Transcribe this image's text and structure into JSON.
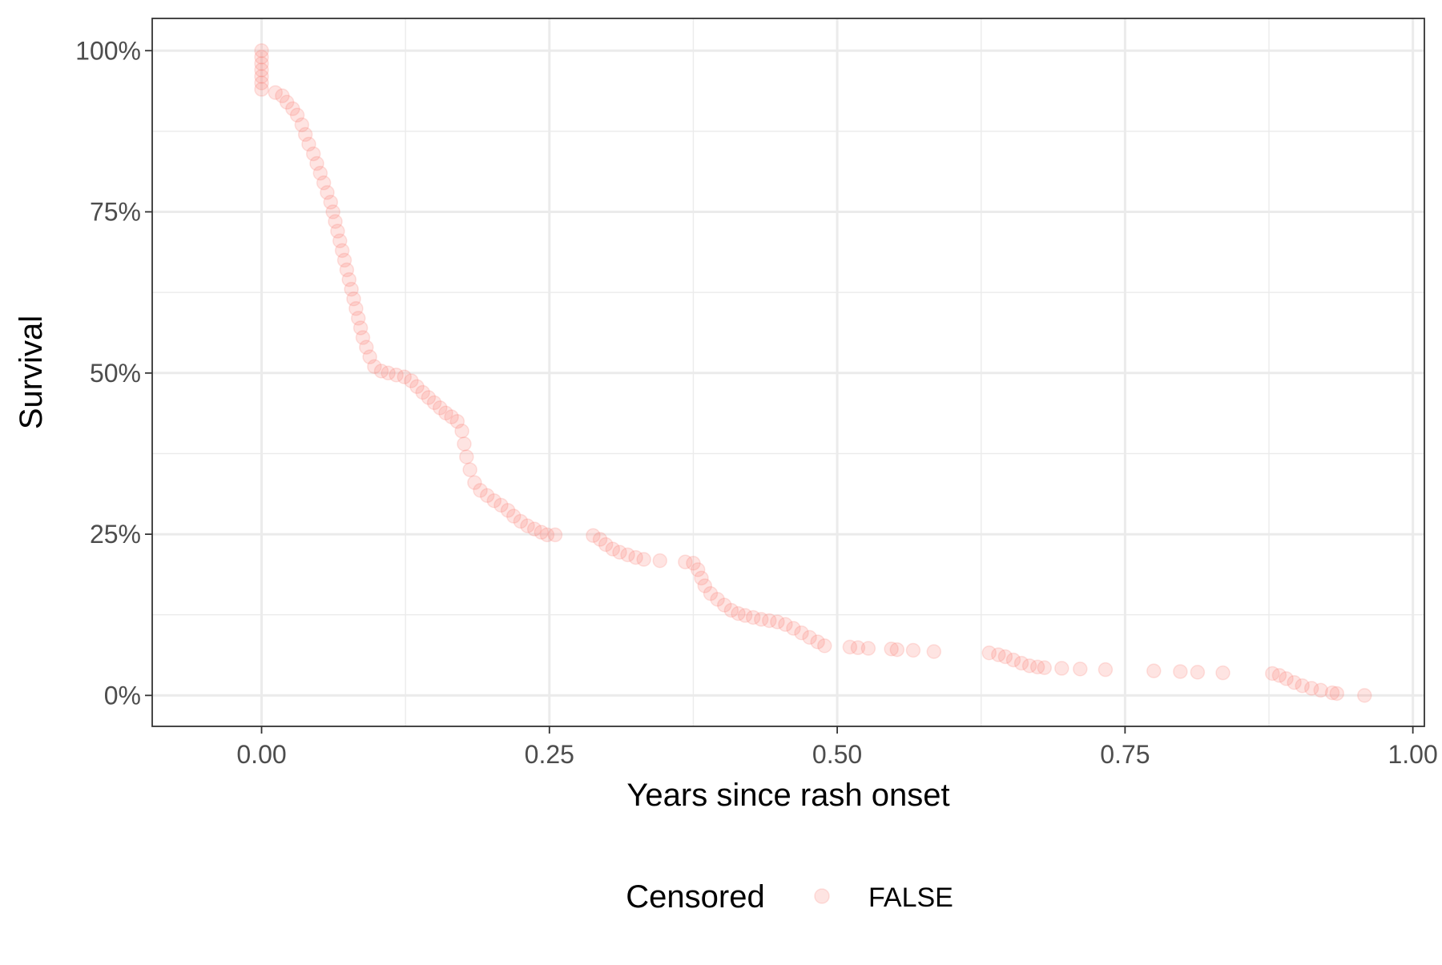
{
  "chart_data": {
    "type": "scatter",
    "xlabel": "Years since rash onset",
    "ylabel": "Survival",
    "xlim": [
      -0.095,
      1.01
    ],
    "ylim": [
      -0.048,
      1.05
    ],
    "x_ticks": [
      0,
      0.25,
      0.5,
      0.75,
      1.0
    ],
    "x_tick_labels": [
      "0.00",
      "0.25",
      "0.50",
      "0.75",
      "1.00"
    ],
    "y_ticks": [
      0,
      0.25,
      0.5,
      0.75,
      1.0
    ],
    "y_tick_labels": [
      "0%",
      "25%",
      "50%",
      "75%",
      "100%"
    ],
    "grid": true,
    "legend_position": "bottom",
    "legend": {
      "title": "Censored",
      "entries": [
        {
          "label": "FALSE",
          "color": "#F8766D"
        }
      ]
    },
    "point_color": "#F8766D",
    "point_opacity": 0.2,
    "series": [
      {
        "name": "FALSE",
        "points": [
          [
            0,
            1.0
          ],
          [
            0,
            0.99
          ],
          [
            0,
            0.98
          ],
          [
            0,
            0.97
          ],
          [
            0,
            0.96
          ],
          [
            0,
            0.95
          ],
          [
            0,
            0.94
          ],
          [
            0.012,
            0.935
          ],
          [
            0.018,
            0.93
          ],
          [
            0.022,
            0.92
          ],
          [
            0.027,
            0.91
          ],
          [
            0.031,
            0.9
          ],
          [
            0.035,
            0.885
          ],
          [
            0.038,
            0.87
          ],
          [
            0.041,
            0.855
          ],
          [
            0.045,
            0.84
          ],
          [
            0.048,
            0.825
          ],
          [
            0.051,
            0.81
          ],
          [
            0.054,
            0.795
          ],
          [
            0.057,
            0.78
          ],
          [
            0.06,
            0.765
          ],
          [
            0.062,
            0.75
          ],
          [
            0.064,
            0.735
          ],
          [
            0.066,
            0.72
          ],
          [
            0.068,
            0.705
          ],
          [
            0.07,
            0.69
          ],
          [
            0.072,
            0.675
          ],
          [
            0.074,
            0.66
          ],
          [
            0.076,
            0.645
          ],
          [
            0.078,
            0.63
          ],
          [
            0.08,
            0.615
          ],
          [
            0.082,
            0.6
          ],
          [
            0.084,
            0.585
          ],
          [
            0.086,
            0.57
          ],
          [
            0.088,
            0.555
          ],
          [
            0.091,
            0.54
          ],
          [
            0.094,
            0.525
          ],
          [
            0.098,
            0.51
          ],
          [
            0.104,
            0.503
          ],
          [
            0.11,
            0.5
          ],
          [
            0.117,
            0.497
          ],
          [
            0.124,
            0.494
          ],
          [
            0.13,
            0.488
          ],
          [
            0.135,
            0.479
          ],
          [
            0.14,
            0.47
          ],
          [
            0.145,
            0.462
          ],
          [
            0.15,
            0.454
          ],
          [
            0.155,
            0.446
          ],
          [
            0.16,
            0.438
          ],
          [
            0.165,
            0.432
          ],
          [
            0.17,
            0.425
          ],
          [
            0.174,
            0.41
          ],
          [
            0.176,
            0.39
          ],
          [
            0.178,
            0.37
          ],
          [
            0.181,
            0.35
          ],
          [
            0.185,
            0.33
          ],
          [
            0.19,
            0.318
          ],
          [
            0.196,
            0.31
          ],
          [
            0.202,
            0.302
          ],
          [
            0.208,
            0.295
          ],
          [
            0.214,
            0.287
          ],
          [
            0.219,
            0.278
          ],
          [
            0.225,
            0.27
          ],
          [
            0.231,
            0.263
          ],
          [
            0.237,
            0.258
          ],
          [
            0.243,
            0.253
          ],
          [
            0.248,
            0.249
          ],
          [
            0.255,
            0.249
          ],
          [
            0.288,
            0.248
          ],
          [
            0.294,
            0.242
          ],
          [
            0.299,
            0.234
          ],
          [
            0.305,
            0.227
          ],
          [
            0.311,
            0.222
          ],
          [
            0.318,
            0.218
          ],
          [
            0.325,
            0.214
          ],
          [
            0.332,
            0.211
          ],
          [
            0.346,
            0.209
          ],
          [
            0.368,
            0.207
          ],
          [
            0.375,
            0.205
          ],
          [
            0.379,
            0.195
          ],
          [
            0.382,
            0.182
          ],
          [
            0.385,
            0.17
          ],
          [
            0.39,
            0.158
          ],
          [
            0.396,
            0.149
          ],
          [
            0.402,
            0.14
          ],
          [
            0.408,
            0.132
          ],
          [
            0.414,
            0.127
          ],
          [
            0.42,
            0.124
          ],
          [
            0.427,
            0.121
          ],
          [
            0.434,
            0.118
          ],
          [
            0.441,
            0.116
          ],
          [
            0.448,
            0.114
          ],
          [
            0.455,
            0.11
          ],
          [
            0.462,
            0.104
          ],
          [
            0.469,
            0.097
          ],
          [
            0.476,
            0.09
          ],
          [
            0.483,
            0.083
          ],
          [
            0.489,
            0.077
          ],
          [
            0.511,
            0.075
          ],
          [
            0.518,
            0.074
          ],
          [
            0.527,
            0.073
          ],
          [
            0.547,
            0.072
          ],
          [
            0.552,
            0.071
          ],
          [
            0.566,
            0.07
          ],
          [
            0.584,
            0.068
          ],
          [
            0.632,
            0.066
          ],
          [
            0.64,
            0.063
          ],
          [
            0.646,
            0.06
          ],
          [
            0.653,
            0.055
          ],
          [
            0.66,
            0.05
          ],
          [
            0.667,
            0.046
          ],
          [
            0.674,
            0.044
          ],
          [
            0.68,
            0.043
          ],
          [
            0.695,
            0.042
          ],
          [
            0.711,
            0.041
          ],
          [
            0.733,
            0.04
          ],
          [
            0.775,
            0.038
          ],
          [
            0.798,
            0.037
          ],
          [
            0.813,
            0.036
          ],
          [
            0.835,
            0.035
          ],
          [
            0.878,
            0.034
          ],
          [
            0.884,
            0.031
          ],
          [
            0.89,
            0.026
          ],
          [
            0.897,
            0.02
          ],
          [
            0.904,
            0.015
          ],
          [
            0.912,
            0.011
          ],
          [
            0.92,
            0.008
          ],
          [
            0.93,
            0.004
          ],
          [
            0.934,
            0.003
          ],
          [
            0.958,
            0.0
          ]
        ]
      }
    ]
  }
}
